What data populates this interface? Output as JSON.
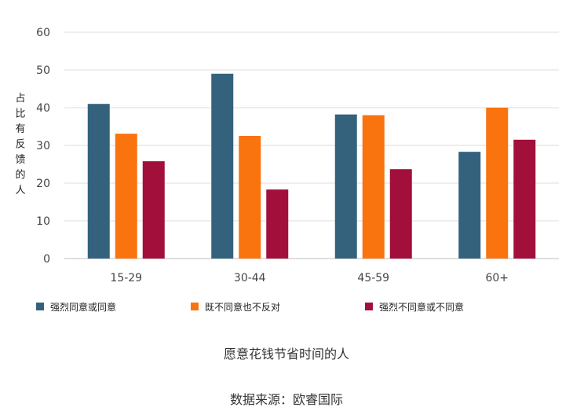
{
  "chart_data": {
    "type": "bar",
    "ylabel": "占比有反馈的人",
    "ylim": [
      0,
      60
    ],
    "yticks": [
      0,
      10,
      20,
      30,
      40,
      50,
      60
    ],
    "categories": [
      "15-29",
      "30-44",
      "45-59",
      "60+"
    ],
    "series": [
      {
        "name": "强烈同意或同意",
        "color": "#34627c",
        "values": [
          41,
          49,
          38.2,
          28.3
        ]
      },
      {
        "name": "既不同意也不反对",
        "color": "#f9730f",
        "values": [
          33.1,
          32.5,
          38,
          40
        ]
      },
      {
        "name": "强烈不同意或不同意",
        "color": "#a30f3b",
        "values": [
          25.8,
          18.3,
          23.7,
          31.5
        ]
      }
    ],
    "grid": true,
    "legend_position": "bottom"
  },
  "footer": {
    "subtitle": "愿意花钱节省时间的人",
    "source": "数据来源：欧睿国际"
  }
}
